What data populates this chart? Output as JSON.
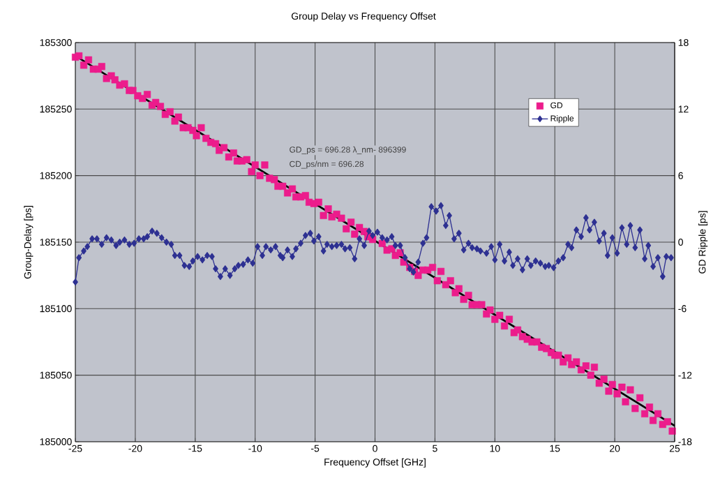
{
  "chart_data": {
    "type": "scatter",
    "title": "Group Delay vs Frequency Offset",
    "xlabel": "Frequency Offset [GHz]",
    "ylabel": "Group-Delay [ps]",
    "y2label": "GD Ripple [ps]",
    "annotations": [
      "GD_ps = 696.28    λ_nm- 896399",
      "CD_ps/nm = 696.28"
    ],
    "xlim": [
      -25,
      25
    ],
    "xticks": [
      -25,
      -20,
      -15,
      -10,
      -5,
      0,
      5,
      10,
      15,
      20,
      25
    ],
    "ylim": [
      185000,
      185300
    ],
    "yticks": [
      185000,
      185050,
      185100,
      185150,
      185200,
      185250,
      185300
    ],
    "y2lim": [
      -18,
      18
    ],
    "y2ticks": [
      -18,
      -12,
      -6,
      0,
      6,
      12,
      18
    ],
    "grid": true,
    "legend": "top right",
    "series": [
      {
        "name": "GD",
        "marker": "square",
        "color": "#ec1c8c",
        "x": [
          -25.0,
          -24.7,
          -24.3,
          -23.9,
          -23.5,
          -23.1,
          -22.8,
          -22.4,
          -22.0,
          -21.7,
          -21.3,
          -20.9,
          -20.5,
          -20.2,
          -19.8,
          -19.4,
          -19.0,
          -18.6,
          -18.3,
          -17.9,
          -17.5,
          -17.1,
          -16.7,
          -16.4,
          -16.0,
          -15.6,
          -15.2,
          -14.9,
          -14.5,
          -14.1,
          -13.7,
          -13.3,
          -13.0,
          -12.6,
          -12.2,
          -11.8,
          -11.5,
          -11.1,
          -10.7,
          -10.3,
          -10.0,
          -9.6,
          -9.2,
          -8.8,
          -8.4,
          -8.1,
          -7.7,
          -7.3,
          -6.9,
          -6.6,
          -6.2,
          -5.8,
          -5.5,
          -5.1,
          -4.7,
          -4.3,
          -3.9,
          -3.6,
          -3.2,
          -2.8,
          -2.4,
          -2.0,
          -1.7,
          -1.3,
          -0.9,
          -0.6,
          -0.2,
          0.6,
          1.0,
          1.4,
          1.7,
          2.1,
          2.4,
          2.9,
          3.3,
          3.6,
          4.0,
          4.4,
          4.8,
          5.2,
          5.5,
          5.9,
          6.3,
          6.7,
          7.0,
          7.4,
          7.8,
          8.1,
          8.5,
          8.9,
          9.3,
          9.6,
          10.0,
          10.4,
          10.8,
          11.2,
          11.6,
          11.9,
          12.3,
          12.7,
          13.1,
          13.5,
          13.9,
          14.3,
          14.7,
          15.0,
          15.3,
          15.7,
          16.1,
          16.4,
          16.8,
          17.2,
          17.6,
          18.0,
          18.3,
          18.7,
          19.1,
          19.5,
          19.8,
          20.2,
          20.6,
          20.9,
          21.3,
          21.7,
          22.1,
          22.5,
          22.9,
          23.2,
          23.6,
          24.0,
          24.4,
          24.8
        ],
        "values": [
          185289,
          185290,
          185283,
          185287,
          185280,
          185280,
          185282,
          185273,
          185275,
          185272,
          185268,
          185269,
          185264,
          185264,
          185260,
          185258,
          185261,
          185253,
          185255,
          185252,
          185246,
          185248,
          185241,
          185244,
          185236,
          185236,
          185234,
          185230,
          185236,
          185228,
          185225,
          185224,
          185219,
          185221,
          185214,
          185217,
          185211,
          185211,
          185212,
          185203,
          185208,
          185200,
          185208,
          185198,
          185197,
          185192,
          185192,
          185187,
          185190,
          185184,
          185184,
          185185,
          185180,
          185179,
          185180,
          185170,
          185175,
          185169,
          185171,
          185168,
          185160,
          185165,
          185156,
          185161,
          185158,
          185154,
          185152,
          185149,
          185144,
          185145,
          185140,
          185142,
          185135,
          185131,
          185128,
          185125,
          185129,
          185129,
          185131,
          185121,
          185128,
          185118,
          185121,
          185112,
          185115,
          185107,
          185110,
          185103,
          185103,
          185103,
          185096,
          185099,
          185092,
          185095,
          185087,
          185092,
          185082,
          185084,
          185079,
          185077,
          185075,
          185075,
          185071,
          185070,
          185067,
          185065,
          185065,
          185060,
          185063,
          185058,
          185060,
          185054,
          185057,
          185050,
          185056,
          185044,
          185047,
          185038,
          185043,
          185036,
          185041,
          185030,
          185039,
          185025,
          185033,
          185021,
          185026,
          185016,
          185021,
          185013,
          185015,
          185008
        ]
      },
      {
        "name": "Ripple",
        "type": "line",
        "marker": "diamond",
        "axis": "y2",
        "color": "#2e3192",
        "x": [
          -25,
          -24.7,
          -24.3,
          -24.0,
          -23.6,
          -23.2,
          -22.8,
          -22.4,
          -22.0,
          -21.6,
          -21.3,
          -20.9,
          -20.5,
          -20.1,
          -19.7,
          -19.3,
          -19.0,
          -18.6,
          -18.2,
          -17.8,
          -17.4,
          -17.0,
          -16.7,
          -16.3,
          -15.9,
          -15.5,
          -15.2,
          -14.8,
          -14.4,
          -14.0,
          -13.6,
          -13.3,
          -12.9,
          -12.5,
          -12.1,
          -11.7,
          -11.4,
          -11.0,
          -10.6,
          -10.2,
          -9.8,
          -9.4,
          -9.1,
          -8.7,
          -8.3,
          -7.9,
          -7.7,
          -7.3,
          -6.9,
          -6.6,
          -6.2,
          -5.8,
          -5.4,
          -5.1,
          -4.7,
          -4.3,
          -4.0,
          -3.6,
          -3.2,
          -2.8,
          -2.5,
          -2.1,
          -1.7,
          -1.3,
          -0.9,
          -0.5,
          -0.2,
          0.2,
          0.6,
          1.0,
          1.4,
          1.7,
          2.1,
          2.5,
          2.9,
          3.2,
          3.6,
          4.0,
          4.3,
          4.7,
          5.1,
          5.5,
          5.9,
          6.2,
          6.6,
          7.0,
          7.4,
          7.8,
          8.1,
          8.5,
          8.8,
          9.3,
          9.7,
          10.0,
          10.4,
          10.8,
          11.2,
          11.5,
          11.9,
          12.3,
          12.7,
          13.0,
          13.4,
          13.8,
          14.2,
          14.5,
          14.9,
          15.3,
          15.7,
          16.1,
          16.4,
          16.8,
          17.2,
          17.6,
          17.9,
          18.3,
          18.7,
          19.1,
          19.4,
          19.8,
          20.2,
          20.6,
          21.0,
          21.3,
          21.7,
          22.1,
          22.5,
          22.8,
          23.2,
          23.6,
          24.0,
          24.3,
          24.7
        ],
        "values": [
          -3.6,
          -1.4,
          -0.8,
          -0.4,
          0.3,
          0.3,
          -0.2,
          0.4,
          0.2,
          -0.3,
          0.0,
          0.2,
          -0.2,
          -0.1,
          0.3,
          0.3,
          0.5,
          1.0,
          0.8,
          0.4,
          0.0,
          -0.2,
          -1.2,
          -1.2,
          -2.1,
          -2.2,
          -1.7,
          -1.3,
          -1.6,
          -1.2,
          -1.3,
          -2.4,
          -3.1,
          -2.4,
          -3.0,
          -2.4,
          -2.1,
          -2.0,
          -1.6,
          -1.9,
          -0.4,
          -1.2,
          -0.4,
          -0.7,
          -0.4,
          -1.2,
          -1.4,
          -0.7,
          -1.3,
          -0.6,
          -0.1,
          0.6,
          0.8,
          0.1,
          0.5,
          -0.8,
          -0.2,
          -0.4,
          -0.3,
          -0.2,
          -0.6,
          -0.5,
          -1.5,
          0.3,
          -0.3,
          1.0,
          0.6,
          0.9,
          0.4,
          0.2,
          0.5,
          -0.3,
          -0.3,
          -1.4,
          -2.4,
          -2.7,
          -1.8,
          -0.1,
          0.4,
          3.2,
          2.8,
          3.3,
          1.5,
          2.4,
          0.3,
          0.8,
          -0.7,
          -0.1,
          -0.5,
          -0.6,
          -0.8,
          -1.0,
          -0.4,
          -1.6,
          -0.2,
          -1.7,
          -0.9,
          -2.1,
          -1.5,
          -2.5,
          -1.5,
          -2.1,
          -1.7,
          -1.9,
          -2.2,
          -2.1,
          -2.3,
          -1.7,
          -1.4,
          -0.2,
          -0.5,
          1.1,
          0.5,
          2.2,
          1.1,
          1.8,
          0.1,
          0.8,
          -1.2,
          0.4,
          -1.0,
          1.3,
          -0.2,
          1.5,
          -0.5,
          1.1,
          -1.5,
          -0.3,
          -2.2,
          -1.4,
          -3.1,
          -1.3,
          -1.4
        ]
      },
      {
        "type": "line",
        "marker": "none",
        "color": "#000000",
        "x": [
          -25,
          25
        ],
        "values": [
          185290,
          185012
        ]
      }
    ]
  }
}
